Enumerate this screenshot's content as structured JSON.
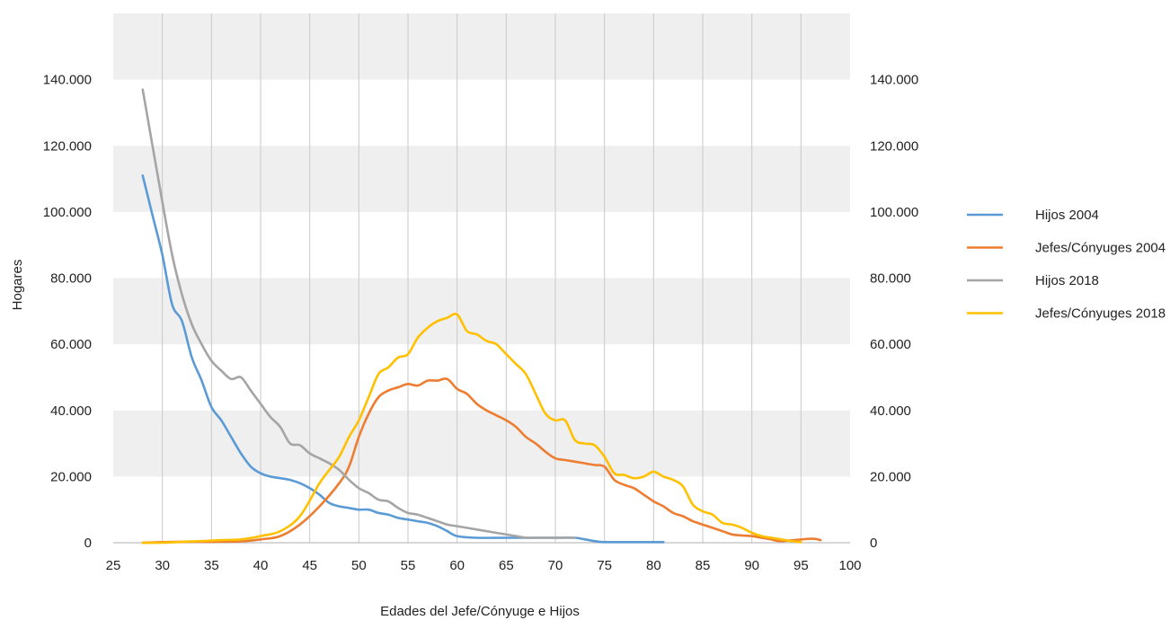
{
  "chart_data": {
    "type": "line",
    "title": "",
    "xlabel": "Edades del Jefe/Cónyuge e Hijos",
    "ylabel": "Hogares",
    "xlim": [
      25,
      100
    ],
    "ylim": [
      0,
      160000
    ],
    "x_ticks": [
      25,
      30,
      35,
      40,
      45,
      50,
      55,
      60,
      65,
      70,
      75,
      80,
      85,
      90,
      95,
      100
    ],
    "x_tick_labels": [
      "25",
      "30",
      "35",
      "40",
      "45",
      "50",
      "55",
      "60",
      "65",
      "70",
      "75",
      "80",
      "85",
      "90",
      "95",
      "100"
    ],
    "y_ticks": [
      0,
      20000,
      40000,
      60000,
      80000,
      100000,
      120000,
      140000
    ],
    "y_tick_labels": [
      "0",
      "20.000",
      "40.000",
      "60.000",
      "80.000",
      "100.000",
      "120.000",
      "140.000"
    ],
    "y2_tick_labels": [
      "0",
      "20.000",
      "40.000",
      "60.000",
      "80.000",
      "100.000",
      "120.000",
      "140.000"
    ],
    "grid": "alternating horizontal bands, vertical gridlines",
    "legend_position": "right",
    "series": [
      {
        "name": "Hijos 2004",
        "color": "#5b9bd5",
        "x": [
          28,
          29,
          30,
          31,
          32,
          33,
          34,
          35,
          36,
          37,
          38,
          39,
          40,
          41,
          42,
          43,
          44,
          45,
          46,
          47,
          48,
          49,
          50,
          51,
          52,
          53,
          54,
          55,
          56,
          57,
          58,
          59,
          60,
          62,
          65,
          68,
          70,
          72,
          73,
          74,
          75,
          78,
          81
        ],
        "y": [
          111000,
          99000,
          87000,
          72000,
          67000,
          56000,
          49000,
          41000,
          37000,
          32000,
          27000,
          23000,
          21000,
          20000,
          19500,
          19000,
          18000,
          16500,
          14500,
          12000,
          11000,
          10500,
          10000,
          10000,
          9000,
          8500,
          7500,
          7000,
          6500,
          6000,
          5000,
          3500,
          2000,
          1500,
          1500,
          1500,
          1500,
          1500,
          1000,
          500,
          200,
          200,
          200
        ]
      },
      {
        "name": "Jefes/Cónyuges 2004",
        "color": "#ed7d31",
        "x": [
          28,
          30,
          32,
          35,
          38,
          40,
          42,
          44,
          46,
          48,
          49,
          50,
          51,
          52,
          53,
          54,
          55,
          56,
          57,
          58,
          59,
          60,
          61,
          62,
          63,
          64,
          65,
          66,
          67,
          68,
          69,
          70,
          71,
          72,
          73,
          74,
          75,
          76,
          77,
          78,
          79,
          80,
          81,
          82,
          83,
          84,
          85,
          86,
          87,
          88,
          89,
          90,
          91,
          92,
          93,
          96,
          97
        ],
        "y": [
          0,
          200,
          300,
          300,
          400,
          1000,
          2000,
          5500,
          11000,
          18000,
          23000,
          32000,
          39000,
          44000,
          46000,
          47000,
          48000,
          47500,
          49000,
          49000,
          49500,
          46500,
          45000,
          42000,
          40000,
          38500,
          37000,
          35000,
          32000,
          30000,
          27500,
          25500,
          25000,
          24500,
          24000,
          23500,
          23000,
          19000,
          17500,
          16500,
          14500,
          12500,
          11000,
          9000,
          8000,
          6500,
          5500,
          4500,
          3500,
          2500,
          2200,
          2000,
          1500,
          1000,
          500,
          1200,
          800
        ]
      },
      {
        "name": "Hijos 2018",
        "color": "#a5a5a5",
        "x": [
          28,
          29,
          30,
          31,
          32,
          33,
          34,
          35,
          36,
          37,
          38,
          39,
          40,
          41,
          42,
          43,
          44,
          45,
          46,
          47,
          48,
          49,
          50,
          51,
          52,
          53,
          54,
          55,
          56,
          57,
          58,
          59,
          60,
          62,
          64,
          66,
          67,
          68,
          69,
          70,
          71,
          72
        ],
        "y": [
          137000,
          120000,
          103000,
          87000,
          75000,
          66000,
          60000,
          55000,
          52000,
          49500,
          50000,
          46000,
          42000,
          38000,
          35000,
          30000,
          29500,
          27000,
          25500,
          24000,
          22000,
          19000,
          16500,
          15000,
          13000,
          12500,
          10500,
          9000,
          8500,
          7500,
          6500,
          5500,
          5000,
          4000,
          3000,
          2000,
          1500,
          1500,
          1500,
          1500,
          1500,
          1500
        ]
      },
      {
        "name": "Jefes/Cónyuges 2018",
        "color": "#ffc000",
        "x": [
          28,
          30,
          32,
          34,
          36,
          38,
          40,
          42,
          44,
          46,
          47,
          48,
          49,
          50,
          51,
          52,
          53,
          54,
          55,
          56,
          57,
          58,
          59,
          60,
          61,
          62,
          63,
          64,
          65,
          66,
          67,
          68,
          69,
          70,
          71,
          72,
          73,
          74,
          75,
          76,
          77,
          78,
          79,
          80,
          81,
          82,
          83,
          84,
          85,
          86,
          87,
          88,
          89,
          90,
          91,
          92,
          93,
          94,
          95
        ],
        "y": [
          0,
          0,
          300,
          500,
          800,
          1000,
          2000,
          3500,
          8000,
          18000,
          22000,
          26000,
          32000,
          37000,
          44000,
          51000,
          53000,
          56000,
          57000,
          62000,
          65000,
          67000,
          68000,
          69000,
          64000,
          63000,
          61000,
          60000,
          57000,
          54000,
          51000,
          45000,
          39000,
          37000,
          37000,
          31000,
          30000,
          29500,
          26000,
          21000,
          20500,
          19500,
          20000,
          21500,
          20000,
          19000,
          17000,
          11500,
          9500,
          8500,
          6000,
          5500,
          4500,
          3000,
          2000,
          1500,
          1000,
          500,
          200
        ]
      }
    ]
  }
}
